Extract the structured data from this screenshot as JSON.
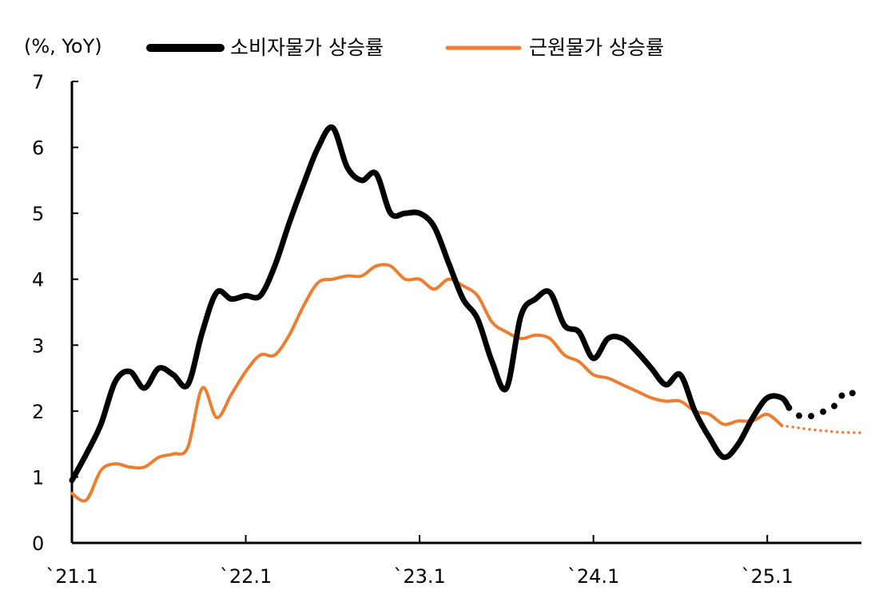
{
  "chart_data": {
    "type": "line",
    "unit_label": "(%, YoY)",
    "ylim": [
      0,
      7
    ],
    "yticks": [
      "0",
      "1",
      "2",
      "3",
      "4",
      "5",
      "6",
      "7"
    ],
    "x_range": [
      0,
      54.5
    ],
    "x_ticks": [
      {
        "label": "`21.1",
        "x": 0
      },
      {
        "label": "`22.1",
        "x": 12
      },
      {
        "label": "`23.1",
        "x": 24
      },
      {
        "label": "`24.1",
        "x": 36
      },
      {
        "label": "`25.1",
        "x": 48
      }
    ],
    "grid": false,
    "legend_position": "top",
    "series": [
      {
        "name": "소비자물가 상승률",
        "color": "#000000",
        "style": "thick",
        "values": [
          [
            0,
            0.95
          ],
          [
            1,
            1.35
          ],
          [
            2,
            1.8
          ],
          [
            3,
            2.45
          ],
          [
            4,
            2.6
          ],
          [
            5,
            2.35
          ],
          [
            6,
            2.65
          ],
          [
            7,
            2.55
          ],
          [
            8,
            2.4
          ],
          [
            9,
            3.2
          ],
          [
            10,
            3.8
          ],
          [
            11,
            3.7
          ],
          [
            12,
            3.75
          ],
          [
            13,
            3.75
          ],
          [
            14,
            4.2
          ],
          [
            15,
            4.85
          ],
          [
            16,
            5.45
          ],
          [
            17,
            6.0
          ],
          [
            18,
            6.3
          ],
          [
            19,
            5.7
          ],
          [
            20,
            5.5
          ],
          [
            21,
            5.6
          ],
          [
            22,
            5.0
          ],
          [
            23,
            5.0
          ],
          [
            24,
            5.0
          ],
          [
            25,
            4.8
          ],
          [
            26,
            4.25
          ],
          [
            27,
            3.7
          ],
          [
            28,
            3.4
          ],
          [
            29,
            2.75
          ],
          [
            30,
            2.35
          ],
          [
            31,
            3.45
          ],
          [
            32,
            3.7
          ],
          [
            33,
            3.8
          ],
          [
            34,
            3.3
          ],
          [
            35,
            3.2
          ],
          [
            36,
            2.8
          ],
          [
            37,
            3.1
          ],
          [
            38,
            3.1
          ],
          [
            39,
            2.9
          ],
          [
            40,
            2.65
          ],
          [
            41,
            2.4
          ],
          [
            42,
            2.55
          ],
          [
            43,
            2.0
          ],
          [
            44,
            1.6
          ],
          [
            45,
            1.3
          ],
          [
            46,
            1.5
          ],
          [
            47,
            1.9
          ],
          [
            48,
            2.2
          ],
          [
            49,
            2.2
          ],
          [
            49.5,
            2.05
          ]
        ],
        "forecast": [
          [
            49.5,
            2.05
          ],
          [
            50.5,
            1.9
          ],
          [
            51.5,
            1.97
          ],
          [
            52.5,
            2.05
          ],
          [
            53.5,
            2.3
          ],
          [
            54.5,
            2.15
          ]
        ]
      },
      {
        "name": "근원물가 상승률",
        "color": "#ed7d31",
        "style": "normal",
        "values": [
          [
            0,
            0.75
          ],
          [
            1,
            0.65
          ],
          [
            2,
            1.1
          ],
          [
            3,
            1.2
          ],
          [
            4,
            1.15
          ],
          [
            5,
            1.15
          ],
          [
            6,
            1.3
          ],
          [
            7,
            1.35
          ],
          [
            8,
            1.45
          ],
          [
            9,
            2.35
          ],
          [
            10,
            1.9
          ],
          [
            11,
            2.25
          ],
          [
            12,
            2.6
          ],
          [
            13,
            2.85
          ],
          [
            14,
            2.85
          ],
          [
            15,
            3.15
          ],
          [
            16,
            3.6
          ],
          [
            17,
            3.95
          ],
          [
            18,
            4.0
          ],
          [
            19,
            4.05
          ],
          [
            20,
            4.05
          ],
          [
            21,
            4.2
          ],
          [
            22,
            4.2
          ],
          [
            23,
            4.0
          ],
          [
            24,
            4.0
          ],
          [
            25,
            3.85
          ],
          [
            26,
            4.0
          ],
          [
            27,
            3.9
          ],
          [
            28,
            3.75
          ],
          [
            29,
            3.35
          ],
          [
            30,
            3.2
          ],
          [
            31,
            3.1
          ],
          [
            32,
            3.15
          ],
          [
            33,
            3.1
          ],
          [
            34,
            2.85
          ],
          [
            35,
            2.75
          ],
          [
            36,
            2.55
          ],
          [
            37,
            2.5
          ],
          [
            38,
            2.4
          ],
          [
            39,
            2.3
          ],
          [
            40,
            2.2
          ],
          [
            41,
            2.15
          ],
          [
            42,
            2.15
          ],
          [
            43,
            2.0
          ],
          [
            44,
            1.95
          ],
          [
            45,
            1.8
          ],
          [
            46,
            1.85
          ],
          [
            47,
            1.85
          ],
          [
            48,
            1.95
          ],
          [
            49,
            1.78
          ]
        ],
        "forecast": [
          [
            49,
            1.78
          ],
          [
            50,
            1.75
          ],
          [
            51,
            1.72
          ],
          [
            52,
            1.7
          ],
          [
            53,
            1.68
          ],
          [
            54.5,
            1.67
          ]
        ]
      }
    ]
  }
}
